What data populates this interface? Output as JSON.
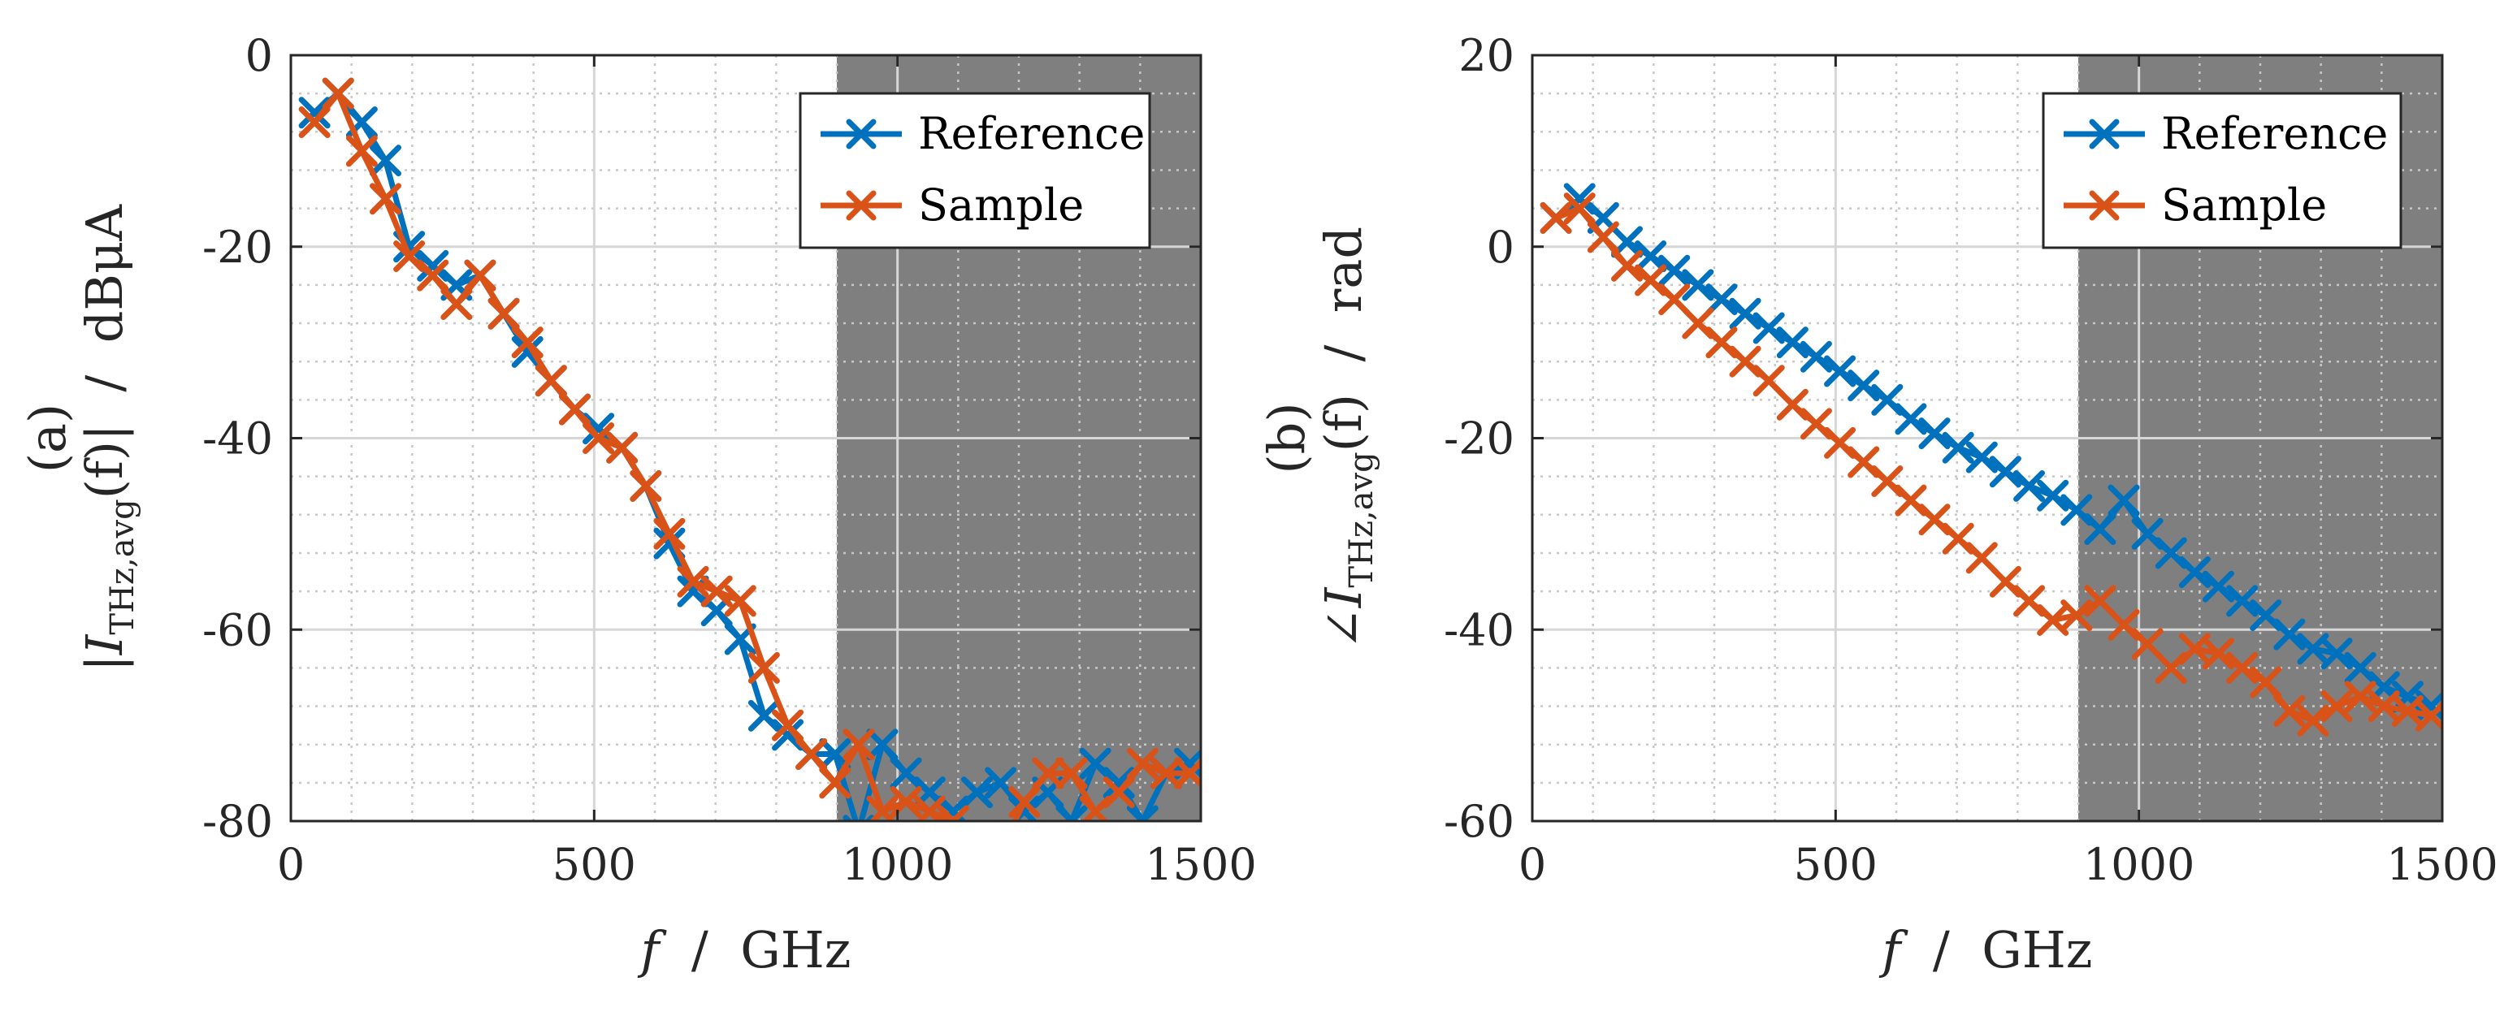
{
  "chart_data": [
    {
      "type": "line",
      "panel_label": "(a)",
      "ylabel": "|I_THz,avg(f)| / dBμA",
      "ylabel_parts": {
        "open": "|",
        "var": "I",
        "sub": "THz,avg",
        "arg": "(f)|",
        "unit": "  /  dBμA"
      },
      "xlabel": "f / GHz",
      "xlabel_parts": {
        "var": "f",
        "unit": "  /  GHz"
      },
      "xlim": [
        0,
        1500
      ],
      "ylim": [
        -80,
        0
      ],
      "xticks": [
        0,
        500,
        1000,
        1500
      ],
      "yticks": [
        -80,
        -60,
        -40,
        -20,
        0
      ],
      "shaded_region": [
        900,
        1500
      ],
      "grid": true,
      "legend_position": "top-right",
      "series": [
        {
          "name": "Reference",
          "color": "#0072BD",
          "x": [
            39,
            78,
            117,
            156,
            195,
            234,
            273,
            312,
            351,
            390,
            429,
            468,
            507,
            546,
            585,
            624,
            663,
            702,
            741,
            780,
            819,
            858,
            897,
            936,
            975,
            1014,
            1053,
            1092,
            1131,
            1170,
            1209,
            1248,
            1287,
            1326,
            1365,
            1404,
            1443,
            1482
          ],
          "y": [
            -6,
            -4,
            -7,
            -11,
            -20,
            -22,
            -24,
            -23,
            -27,
            -31,
            -34,
            -37,
            -39,
            -41,
            -45,
            -51,
            -56,
            -58,
            -61,
            -69,
            -71,
            -73,
            -73,
            -81,
            -72,
            -75,
            -77,
            -79,
            -77,
            -76,
            -79,
            -77,
            -80,
            -74,
            -76,
            -80,
            -75,
            -74
          ]
        },
        {
          "name": "Sample",
          "color": "#D95319",
          "x": [
            39,
            78,
            117,
            156,
            195,
            234,
            273,
            312,
            351,
            390,
            429,
            468,
            507,
            546,
            585,
            624,
            663,
            702,
            741,
            780,
            819,
            858,
            897,
            936,
            975,
            1014,
            1053,
            1092,
            1131,
            1170,
            1209,
            1248,
            1287,
            1326,
            1365,
            1404,
            1443,
            1482
          ],
          "y": [
            -7,
            -4,
            -10,
            -15,
            -21,
            -23,
            -26,
            -23,
            -27,
            -30,
            -34,
            -37,
            -40,
            -41,
            -45,
            -50,
            -55,
            -56,
            -57,
            -64,
            -70,
            -73,
            -76,
            -72,
            -79,
            -78,
            -79,
            -80,
            -82,
            -83,
            -78,
            -75,
            -75,
            -79,
            -77,
            -74,
            -75,
            -75
          ]
        }
      ]
    },
    {
      "type": "line",
      "panel_label": "(b)",
      "ylabel": "∠I_THz,avg(f) / rad",
      "ylabel_parts": {
        "open": "∠",
        "var": "I",
        "sub": "THz,avg",
        "arg": "(f)",
        "unit": "  /  rad"
      },
      "xlabel": "f / GHz",
      "xlabel_parts": {
        "var": "f",
        "unit": "  /  GHz"
      },
      "xlim": [
        0,
        1500
      ],
      "ylim": [
        -60,
        20
      ],
      "xticks": [
        0,
        500,
        1000,
        1500
      ],
      "yticks": [
        -60,
        -40,
        -20,
        0,
        20
      ],
      "shaded_region": [
        900,
        1500
      ],
      "grid": true,
      "legend_position": "top-right",
      "series": [
        {
          "name": "Reference",
          "color": "#0072BD",
          "x": [
            39,
            78,
            117,
            156,
            195,
            234,
            273,
            312,
            351,
            390,
            429,
            468,
            507,
            546,
            585,
            624,
            663,
            702,
            741,
            780,
            819,
            858,
            897,
            936,
            975,
            1014,
            1053,
            1092,
            1131,
            1170,
            1209,
            1248,
            1287,
            1326,
            1365,
            1404,
            1443,
            1482
          ],
          "y": [
            3,
            5,
            3,
            0.5,
            -1,
            -2.5,
            -4,
            -5.5,
            -7,
            -8.5,
            -10,
            -11.5,
            -13,
            -14.5,
            -16,
            -18,
            -19.5,
            -21,
            -22,
            -23.5,
            -25,
            -26,
            -27.5,
            -29.5,
            -26.5,
            -30,
            -32,
            -34,
            -35.5,
            -37,
            -38.5,
            -40.5,
            -42,
            -42.5,
            -44,
            -46,
            -47,
            -48
          ]
        },
        {
          "name": "Sample",
          "color": "#D95319",
          "x": [
            39,
            78,
            117,
            156,
            195,
            234,
            273,
            312,
            351,
            390,
            429,
            468,
            507,
            546,
            585,
            624,
            663,
            702,
            741,
            780,
            819,
            858,
            897,
            936,
            975,
            1014,
            1053,
            1092,
            1131,
            1170,
            1209,
            1248,
            1287,
            1326,
            1365,
            1404,
            1443,
            1482
          ],
          "y": [
            3,
            4,
            1,
            -2,
            -3.5,
            -5.5,
            -8,
            -10,
            -12,
            -14,
            -16.5,
            -18.5,
            -20.5,
            -22.5,
            -24.5,
            -26.5,
            -28.5,
            -30.5,
            -32.5,
            -35,
            -37,
            -39,
            -38.5,
            -37,
            -39.5,
            -41.5,
            -44,
            -42,
            -42.5,
            -44,
            -45.5,
            -48.5,
            -49.5,
            -48,
            -47,
            -48,
            -48.5,
            -49
          ]
        }
      ]
    }
  ]
}
